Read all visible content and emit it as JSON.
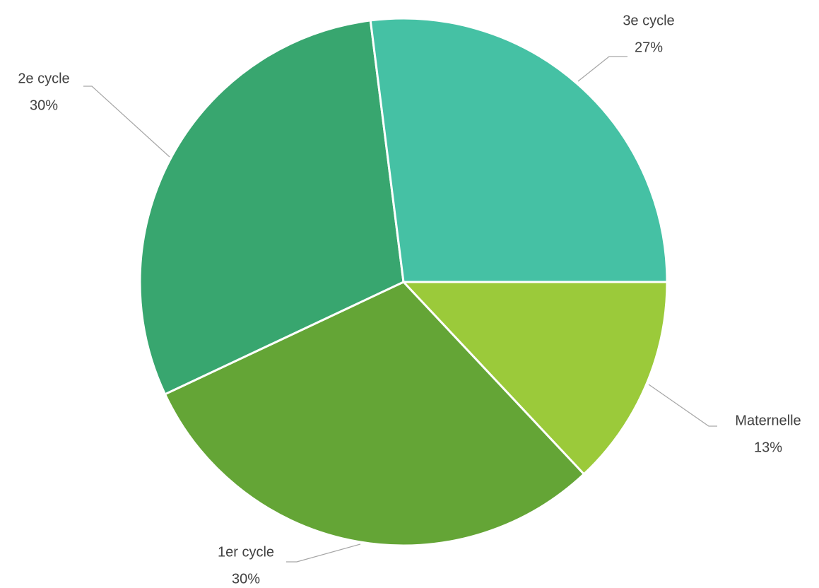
{
  "chart_data": {
    "type": "pie",
    "categories": [
      "Maternelle",
      "1er cycle",
      "2e cycle",
      "3e cycle"
    ],
    "values": [
      13,
      30,
      30,
      27
    ],
    "value_labels": [
      "13%",
      "30%",
      "30%",
      "27%"
    ],
    "colors": [
      "#9bca3a",
      "#64a536",
      "#38a66f",
      "#45c1a4"
    ]
  }
}
